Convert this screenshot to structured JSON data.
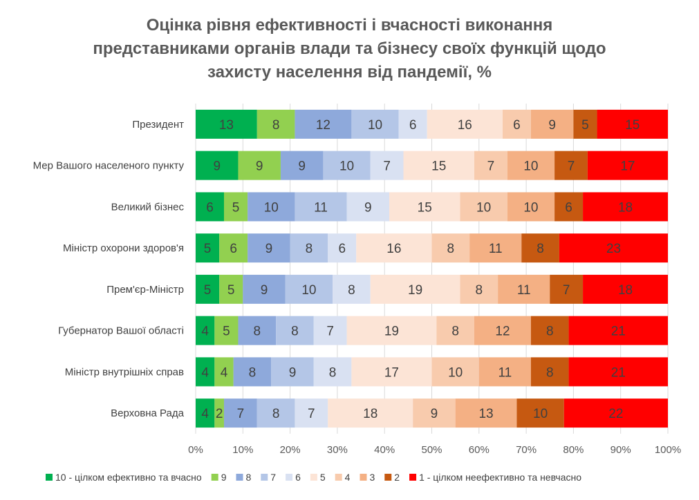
{
  "chart_data": {
    "type": "bar",
    "orientation": "horizontal",
    "stacked": "percent",
    "title_lines": [
      "Оцінка рівня ефективності і вчасності виконання",
      "представниками органів влади та бізнесу своїх функцій щодо",
      "захисту населення від пандемії, %"
    ],
    "categories": [
      "Президент",
      "Мер Вашого населеного пункту",
      "Великий бізнес",
      "Міністр охорони здоров'я",
      "Прем'єр-Міністр",
      "Губернатор Вашої області",
      "Міністр внутрішніх справ",
      "Верховна Рада"
    ],
    "series": [
      {
        "name": "10 - цілком ефективно та вчасно",
        "color": "#00B050",
        "values": [
          13,
          9,
          6,
          5,
          5,
          4,
          4,
          4
        ]
      },
      {
        "name": "9",
        "color": "#92D050",
        "values": [
          8,
          9,
          5,
          6,
          5,
          5,
          4,
          2
        ]
      },
      {
        "name": "8",
        "color": "#8EA9DB",
        "values": [
          12,
          9,
          10,
          9,
          9,
          8,
          8,
          7
        ]
      },
      {
        "name": "7",
        "color": "#B4C6E7",
        "values": [
          10,
          10,
          11,
          8,
          10,
          8,
          9,
          8
        ]
      },
      {
        "name": "6",
        "color": "#D9E1F2",
        "values": [
          6,
          7,
          9,
          6,
          8,
          7,
          8,
          7
        ]
      },
      {
        "name": "5",
        "color": "#FCE4D6",
        "values": [
          16,
          15,
          15,
          16,
          19,
          19,
          17,
          18
        ]
      },
      {
        "name": "4",
        "color": "#F8CBAD",
        "values": [
          6,
          7,
          10,
          8,
          8,
          8,
          10,
          9
        ]
      },
      {
        "name": "3",
        "color": "#F4B084",
        "values": [
          9,
          10,
          10,
          11,
          11,
          12,
          11,
          13
        ]
      },
      {
        "name": "2",
        "color": "#C65911",
        "values": [
          5,
          7,
          6,
          8,
          7,
          8,
          8,
          10
        ]
      },
      {
        "name": "1 - цілком неефективно та невчасно",
        "color": "#FF0000",
        "values": [
          15,
          17,
          18,
          23,
          18,
          21,
          21,
          22
        ]
      }
    ],
    "xlim": [
      0,
      100
    ],
    "x_ticks": [
      "0%",
      "10%",
      "20%",
      "30%",
      "40%",
      "50%",
      "60%",
      "70%",
      "80%",
      "90%",
      "100%"
    ],
    "grid": true,
    "legend_position": "bottom",
    "data_labels": true
  }
}
